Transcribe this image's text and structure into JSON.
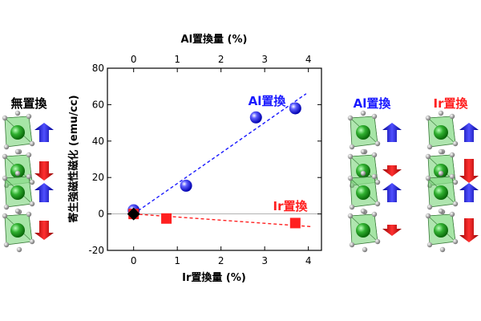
{
  "chart_data": {
    "type": "scatter",
    "bottom_axis": {
      "label": "Ir置換量 (%)",
      "ticks": [
        0,
        1,
        2,
        3,
        4
      ],
      "range": [
        -0.6,
        4.3
      ]
    },
    "top_axis": {
      "label": "Al置換量 (%)",
      "ticks": [
        0,
        1,
        2,
        3,
        4
      ],
      "range": [
        -0.6,
        4.3
      ]
    },
    "y_axis": {
      "label": "寄生強磁性磁化 (emu/cc)",
      "ticks": [
        -20,
        0,
        20,
        40,
        60,
        80
      ],
      "range": [
        -20,
        80
      ]
    },
    "grid": false,
    "series": [
      {
        "name": "Al置換",
        "axis": "top",
        "marker": "circle",
        "color": "#1a1aff",
        "x": [
          0,
          1.2,
          2.8,
          3.7
        ],
        "y": [
          2,
          15.5,
          53,
          58
        ],
        "trend": {
          "x": [
            0,
            3.95
          ],
          "y": [
            0,
            66
          ]
        }
      },
      {
        "name": "Ir置換",
        "axis": "bottom",
        "marker": "square",
        "color": "#ff2020",
        "x": [
          0,
          0.75,
          3.7
        ],
        "y": [
          0,
          -2.5,
          -5
        ],
        "trend": {
          "x": [
            0,
            4.1
          ],
          "y": [
            0,
            -7
          ]
        }
      },
      {
        "marker": "diamond",
        "color": "#000000",
        "x": [
          0
        ],
        "y": [
          0
        ]
      }
    ]
  },
  "panels": {
    "left": {
      "title": "無置換",
      "color": "#000000"
    },
    "mid": {
      "title": "Al置換",
      "color": "#1a1aff"
    },
    "right": {
      "title": "Ir置換",
      "color": "#ff2020"
    }
  }
}
